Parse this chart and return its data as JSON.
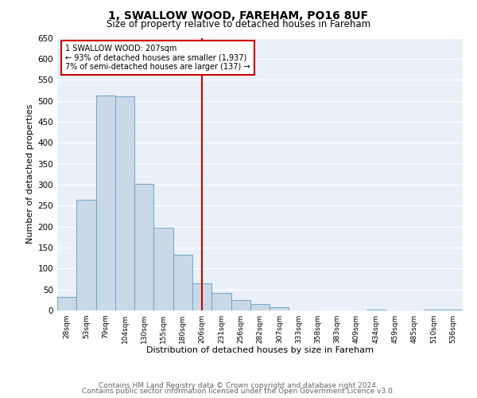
{
  "title": "1, SWALLOW WOOD, FAREHAM, PO16 8UF",
  "subtitle": "Size of property relative to detached houses in Fareham",
  "xlabel": "Distribution of detached houses by size in Fareham",
  "ylabel": "Number of detached properties",
  "bar_labels": [
    "28sqm",
    "53sqm",
    "79sqm",
    "104sqm",
    "130sqm",
    "155sqm",
    "180sqm",
    "206sqm",
    "231sqm",
    "256sqm",
    "282sqm",
    "307sqm",
    "333sqm",
    "358sqm",
    "383sqm",
    "409sqm",
    "434sqm",
    "459sqm",
    "485sqm",
    "510sqm",
    "536sqm"
  ],
  "bar_values": [
    33,
    263,
    513,
    510,
    302,
    197,
    133,
    65,
    41,
    25,
    16,
    7,
    0,
    0,
    0,
    0,
    2,
    0,
    0,
    2,
    2
  ],
  "bar_color": "#c9d9e8",
  "bar_edge_color": "#7aaac8",
  "ylim": [
    0,
    650
  ],
  "yticks": [
    0,
    50,
    100,
    150,
    200,
    250,
    300,
    350,
    400,
    450,
    500,
    550,
    600,
    650
  ],
  "vline_idx": 7,
  "vline_color": "#cc0000",
  "annotation_text": "1 SWALLOW WOOD: 207sqm\n← 93% of detached houses are smaller (1,937)\n7% of semi-detached houses are larger (137) →",
  "annotation_box_color": "#ffffff",
  "annotation_box_edge": "#cc0000",
  "footer1": "Contains HM Land Registry data © Crown copyright and database right 2024.",
  "footer2": "Contains public sector information licensed under the Open Government Licence v3.0.",
  "plot_background": "#eaf0f7",
  "title_fontsize": 10,
  "subtitle_fontsize": 8.5,
  "footer_fontsize": 6.5
}
